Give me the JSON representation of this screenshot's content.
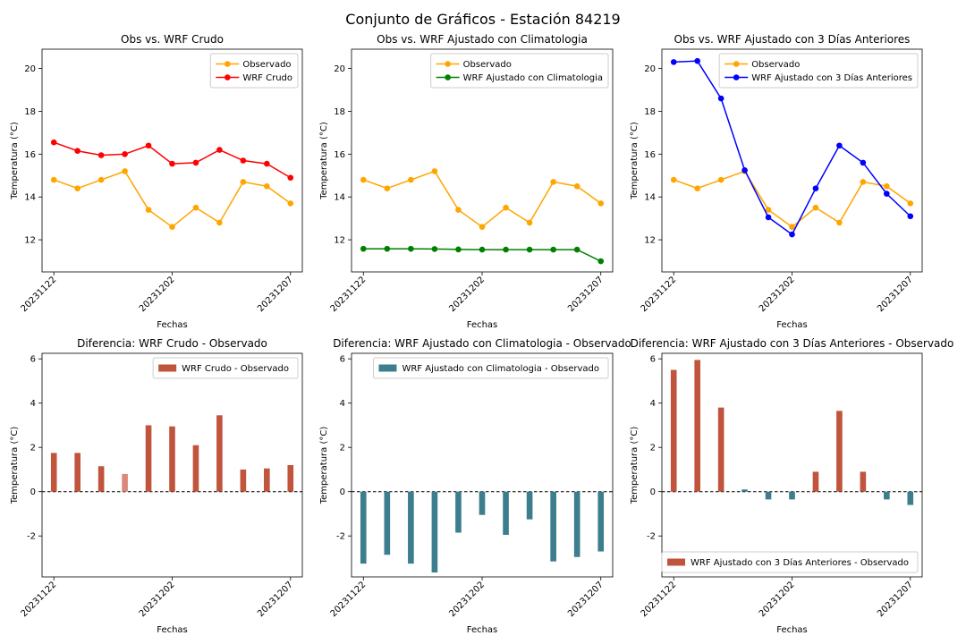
{
  "suptitle": "Conjunto de Gráficos - Estación 84219",
  "colors": {
    "observado": "#FFA500",
    "crudo": "#FF0000",
    "clima": "#008000",
    "tres_dias": "#0000FF",
    "bar_positive": "#C0543C",
    "bar_positive_light": "#D9897A",
    "bar_negative": "#3C7E8E"
  },
  "chart_data": [
    {
      "type": "line",
      "title": "Obs vs. WRF Crudo",
      "xlabel": "Fechas",
      "ylabel": "Temperatura (°C)",
      "x": [
        "20231122",
        "20231123",
        "20231124",
        "20231125",
        "20231126",
        "20231202",
        "20231203",
        "20231204",
        "20231205",
        "20231206",
        "20231207"
      ],
      "xticks": [
        "20231122",
        "20231202",
        "20231207"
      ],
      "yticks": [
        12,
        14,
        16,
        18,
        20
      ],
      "ylim": [
        10.5,
        20.9
      ],
      "legend_position": "upper-right",
      "series": [
        {
          "name": "Observado",
          "color": "#FFA500",
          "values": [
            14.8,
            14.4,
            14.8,
            15.2,
            13.4,
            12.6,
            13.5,
            12.8,
            14.7,
            14.5,
            13.7
          ]
        },
        {
          "name": "WRF Crudo",
          "color": "#FF0000",
          "values": [
            16.55,
            16.15,
            15.95,
            16.0,
            16.4,
            15.55,
            15.6,
            16.2,
            15.7,
            15.55,
            14.9
          ]
        }
      ]
    },
    {
      "type": "line",
      "title": "Obs vs. WRF Ajustado con Climatologia",
      "xlabel": "Fechas",
      "ylabel": "Temperatura (°C)",
      "x": [
        "20231122",
        "20231123",
        "20231124",
        "20231125",
        "20231126",
        "20231202",
        "20231203",
        "20231204",
        "20231205",
        "20231206",
        "20231207"
      ],
      "xticks": [
        "20231122",
        "20231202",
        "20231207"
      ],
      "yticks": [
        12,
        14,
        16,
        18,
        20
      ],
      "ylim": [
        10.5,
        20.9
      ],
      "legend_position": "upper-right",
      "series": [
        {
          "name": "Observado",
          "color": "#FFA500",
          "values": [
            14.8,
            14.4,
            14.8,
            15.2,
            13.4,
            12.6,
            13.5,
            12.8,
            14.7,
            14.5,
            13.7
          ]
        },
        {
          "name": "WRF Ajustado con Climatologia",
          "color": "#008000",
          "values": [
            11.58,
            11.58,
            11.58,
            11.57,
            11.55,
            11.54,
            11.54,
            11.54,
            11.54,
            11.54,
            11.0
          ]
        }
      ]
    },
    {
      "type": "line",
      "title": "Obs vs. WRF Ajustado con 3 Días Anteriores",
      "xlabel": "Fechas",
      "ylabel": "Temperatura (°C)",
      "x": [
        "20231122",
        "20231123",
        "20231124",
        "20231125",
        "20231126",
        "20231202",
        "20231203",
        "20231204",
        "20231205",
        "20231206",
        "20231207"
      ],
      "xticks": [
        "20231122",
        "20231202",
        "20231207"
      ],
      "yticks": [
        12,
        14,
        16,
        18,
        20
      ],
      "ylim": [
        10.5,
        20.9
      ],
      "legend_position": "upper-right",
      "series": [
        {
          "name": "Observado",
          "color": "#FFA500",
          "values": [
            14.8,
            14.4,
            14.8,
            15.2,
            13.4,
            12.6,
            13.5,
            12.8,
            14.7,
            14.5,
            13.7
          ]
        },
        {
          "name": "WRF Ajustado con 3 Días Anteriores",
          "color": "#0000FF",
          "values": [
            20.3,
            20.35,
            18.6,
            15.25,
            13.05,
            12.25,
            14.4,
            16.4,
            15.6,
            14.15,
            13.1
          ]
        }
      ]
    },
    {
      "type": "bar",
      "title": "Diferencia: WRF Crudo - Observado",
      "xlabel": "Fechas",
      "ylabel": "Temperatura (°C)",
      "x": [
        "20231122",
        "20231123",
        "20231124",
        "20231125",
        "20231126",
        "20231202",
        "20231203",
        "20231204",
        "20231205",
        "20231206",
        "20231207"
      ],
      "xticks": [
        "20231122",
        "20231202",
        "20231207"
      ],
      "yticks": [
        -2,
        0,
        2,
        4,
        6
      ],
      "ylim": [
        -3.85,
        6.25
      ],
      "legend_position": "upper-right",
      "series": [
        {
          "name": "WRF Crudo - Observado",
          "values": [
            1.75,
            1.75,
            1.15,
            0.8,
            3.0,
            2.95,
            2.1,
            3.45,
            1.0,
            1.05,
            1.2
          ],
          "bar_colors": [
            "#C0543C",
            "#C0543C",
            "#C0543C",
            "#D9897A",
            "#C0543C",
            "#C0543C",
            "#C0543C",
            "#C0543C",
            "#C0543C",
            "#C0543C",
            "#C0543C"
          ]
        }
      ]
    },
    {
      "type": "bar",
      "title": "Diferencia: WRF Ajustado con Climatologia - Observado",
      "xlabel": "Fechas",
      "ylabel": "Temperatura (°C)",
      "x": [
        "20231122",
        "20231123",
        "20231124",
        "20231125",
        "20231126",
        "20231202",
        "20231203",
        "20231204",
        "20231205",
        "20231206",
        "20231207"
      ],
      "xticks": [
        "20231122",
        "20231202",
        "20231207"
      ],
      "yticks": [
        -2,
        0,
        2,
        4,
        6
      ],
      "ylim": [
        -3.85,
        6.25
      ],
      "legend_position": "upper-right",
      "series": [
        {
          "name": "WRF Ajustado con Climatologia - Observado",
          "values": [
            -3.25,
            -2.85,
            -3.25,
            -3.65,
            -1.85,
            -1.05,
            -1.95,
            -1.25,
            -3.15,
            -2.95,
            -2.7
          ],
          "bar_colors": [
            "#3C7E8E",
            "#3C7E8E",
            "#3C7E8E",
            "#3C7E8E",
            "#3C7E8E",
            "#3C7E8E",
            "#3C7E8E",
            "#3C7E8E",
            "#3C7E8E",
            "#3C7E8E",
            "#3C7E8E"
          ]
        }
      ]
    },
    {
      "type": "bar",
      "title": "Diferencia: WRF Ajustado con 3 Días Anteriores - Observado",
      "xlabel": "Fechas",
      "ylabel": "Temperatura (°C)",
      "x": [
        "20231122",
        "20231123",
        "20231124",
        "20231125",
        "20231126",
        "20231202",
        "20231203",
        "20231204",
        "20231205",
        "20231206",
        "20231207"
      ],
      "xticks": [
        "20231122",
        "20231202",
        "20231207"
      ],
      "yticks": [
        -2,
        0,
        2,
        4,
        6
      ],
      "ylim": [
        -3.85,
        6.25
      ],
      "legend_position": "lower-right",
      "series": [
        {
          "name": "WRF Ajustado con 3 Días Anteriores - Observado",
          "values": [
            5.5,
            5.95,
            3.8,
            0.1,
            -0.35,
            -0.35,
            0.9,
            3.65,
            0.9,
            -0.35,
            -0.6
          ],
          "bar_colors": [
            "#C0543C",
            "#C0543C",
            "#C0543C",
            "#3C7E8E",
            "#3C7E8E",
            "#3C7E8E",
            "#C0543C",
            "#C0543C",
            "#C0543C",
            "#3C7E8E",
            "#3C7E8E"
          ]
        }
      ]
    }
  ]
}
